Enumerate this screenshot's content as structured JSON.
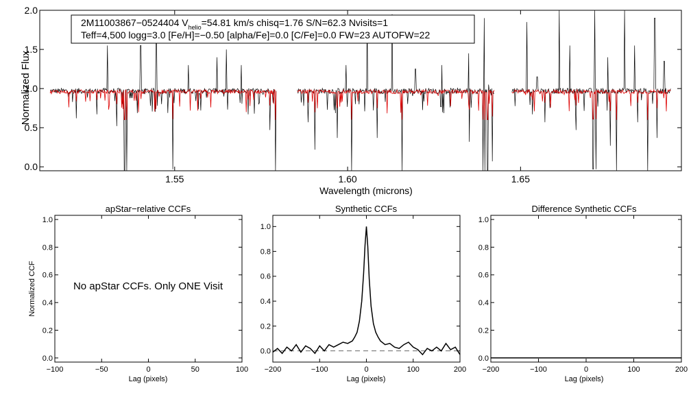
{
  "figure": {
    "title_line1": "2M11003867−0524404  V",
    "helio_subscript": "helio",
    "title_line1b": "=54.81 km/s  chisq=1.76  S/N=62.3  Nvisits=1",
    "title_line2": "Teff=4,500 logg=3.0 [Fe/H]=−0.50 [alpha/Fe]=0.0 [C/Fe]=0.0 FW=23 AUTOFW=22"
  },
  "chart_data": [
    {
      "type": "line",
      "name": "spectrum",
      "xlabel": "Wavelength (microns)",
      "ylabel": "Normalized Flux",
      "xlim": [
        1.511,
        1.6965
      ],
      "ylim": [
        -0.05,
        2.0
      ],
      "xticks": [
        1.55,
        1.6,
        1.65
      ],
      "xtick_labels": [
        "1.55",
        "1.60",
        "1.65"
      ],
      "yticks": [
        0.0,
        0.5,
        1.0,
        1.5,
        2.0
      ],
      "ytick_labels": [
        "0.0",
        "0.5",
        "1.0",
        "1.5",
        "2.0"
      ],
      "segments": [
        [
          1.514,
          1.5795
        ],
        [
          1.5855,
          1.6425
        ],
        [
          1.6475,
          1.6935
        ]
      ],
      "series": [
        {
          "name": "observed",
          "color": "#000000",
          "continuum": 0.97
        },
        {
          "name": "synthetic",
          "color": "#dd0000",
          "continuum": 0.96
        }
      ],
      "absorption_lines": [
        [
          1.5216,
          0.35
        ],
        [
          1.5275,
          0.3
        ],
        [
          1.5332,
          0.45
        ],
        [
          1.5355,
          1.02
        ],
        [
          1.5362,
          1.03
        ],
        [
          1.5494,
          1.0
        ],
        [
          1.5575,
          0.25
        ],
        [
          1.5712,
          0.3
        ],
        [
          1.5775,
          0.5
        ],
        [
          1.5792,
          1.03
        ],
        [
          1.5885,
          0.4
        ],
        [
          1.5905,
          0.75
        ],
        [
          1.597,
          0.6
        ],
        [
          1.6012,
          1.02
        ],
        [
          1.6085,
          0.6
        ],
        [
          1.6158,
          1.02
        ],
        [
          1.6352,
          0.65
        ],
        [
          1.6391,
          1.02
        ],
        [
          1.6397,
          1.03
        ],
        [
          1.6405,
          1.02
        ],
        [
          1.6418,
          0.9
        ],
        [
          1.6535,
          0.3
        ],
        [
          1.657,
          0.4
        ],
        [
          1.666,
          0.5
        ],
        [
          1.671,
          1.0
        ],
        [
          1.6718,
          1.0
        ],
        [
          1.676,
          0.7
        ],
        [
          1.6778,
          1.03
        ],
        [
          1.6838,
          0.4
        ],
        [
          1.6868,
          1.03
        ],
        [
          1.6895,
          0.6
        ]
      ],
      "emission_spikes": [
        [
          1.5305,
          1.55
        ],
        [
          1.5402,
          1.55
        ],
        [
          1.5447,
          1.65
        ],
        [
          1.554,
          1.3
        ],
        [
          1.5622,
          1.4
        ],
        [
          1.565,
          1.5
        ],
        [
          1.5692,
          1.3
        ],
        [
          1.5995,
          1.3
        ],
        [
          1.6056,
          1.9
        ],
        [
          1.6128,
          1.95
        ],
        [
          1.6196,
          1.25
        ],
        [
          1.6272,
          1.3
        ],
        [
          1.635,
          1.45
        ],
        [
          1.6395,
          1.9
        ],
        [
          1.6408,
          1.05
        ],
        [
          1.6435,
          1.2
        ],
        [
          1.6518,
          1.85
        ],
        [
          1.6548,
          1.15
        ],
        [
          1.6612,
          2.0
        ],
        [
          1.6642,
          1.55
        ],
        [
          1.6715,
          2.0
        ],
        [
          1.6752,
          1.4
        ],
        [
          1.6801,
          2.0
        ],
        [
          1.683,
          1.55
        ],
        [
          1.6888,
          1.9
        ],
        [
          1.6915,
          1.35
        ]
      ]
    },
    {
      "type": "line",
      "name": "apstar-ccf",
      "title": "apStar−relative CCFs",
      "xlabel": "Lag (pixels)",
      "ylabel": "Normalized CCF",
      "xlim": [
        -100,
        100
      ],
      "ylim": [
        -0.03,
        1.03
      ],
      "xticks": [
        -100,
        -50,
        0,
        50,
        100
      ],
      "xtick_labels": [
        "−100",
        "−50",
        "0",
        "50",
        "100"
      ],
      "yticks": [
        0.0,
        0.2,
        0.4,
        0.6,
        0.8,
        1.0
      ],
      "ytick_labels": [
        "0.0",
        "0.2",
        "0.4",
        "0.6",
        "0.8",
        "1.0"
      ],
      "annotation": "No apStar CCFs.  Only ONE Visit",
      "series": []
    },
    {
      "type": "line",
      "name": "synthetic-ccf",
      "title": "Synthetic CCFs",
      "xlabel": "Lag (pixels)",
      "xlim": [
        -200,
        200
      ],
      "ylim": [
        -0.09,
        1.09
      ],
      "xticks": [
        -200,
        -100,
        0,
        100,
        200
      ],
      "xtick_labels": [
        "−200",
        "−100",
        "0",
        "100",
        "200"
      ],
      "yticks": [
        0.0,
        0.2,
        0.4,
        0.6,
        0.8,
        1.0
      ],
      "ytick_labels": [
        "0.0",
        "0.2",
        "0.4",
        "0.6",
        "0.8",
        "1.0"
      ],
      "baseline": 0.0,
      "series": [
        {
          "name": "ccf",
          "color": "#000000",
          "x": [
            -200,
            -190,
            -180,
            -170,
            -160,
            -150,
            -140,
            -130,
            -120,
            -110,
            -100,
            -90,
            -80,
            -70,
            -60,
            -50,
            -40,
            -30,
            -25,
            -20,
            -15,
            -10,
            -6,
            -3,
            0,
            3,
            6,
            10,
            15,
            20,
            25,
            30,
            40,
            50,
            60,
            70,
            80,
            90,
            100,
            110,
            120,
            130,
            140,
            150,
            160,
            170,
            180,
            190,
            200
          ],
          "values": [
            -0.01,
            0.02,
            -0.02,
            0.03,
            0.0,
            0.05,
            -0.01,
            0.04,
            0.02,
            -0.02,
            0.04,
            0.0,
            0.05,
            0.03,
            0.05,
            0.07,
            0.06,
            0.08,
            0.11,
            0.15,
            0.24,
            0.4,
            0.62,
            0.85,
            1.0,
            0.84,
            0.58,
            0.36,
            0.22,
            0.15,
            0.11,
            0.08,
            0.05,
            0.06,
            0.03,
            0.02,
            0.05,
            0.07,
            0.03,
            0.01,
            -0.03,
            0.02,
            0.0,
            0.03,
            0.0,
            0.06,
            0.01,
            0.03,
            -0.03
          ]
        }
      ]
    },
    {
      "type": "line",
      "name": "difference-ccf",
      "title": "Difference Synthetic CCFs",
      "xlabel": "Lag (pixels)",
      "xlim": [
        -200,
        200
      ],
      "ylim": [
        -0.03,
        1.03
      ],
      "xticks": [
        -200,
        -100,
        0,
        100,
        200
      ],
      "xtick_labels": [
        "−200",
        "−100",
        "0",
        "100",
        "200"
      ],
      "yticks": [
        0.0,
        0.2,
        0.4,
        0.6,
        0.8,
        1.0
      ],
      "ytick_labels": [
        "0.0",
        "0.2",
        "0.4",
        "0.6",
        "0.8",
        "1.0"
      ],
      "series": [
        {
          "name": "difference",
          "color": "#000000",
          "x": [
            -200,
            200
          ],
          "values": [
            0.0,
            0.0
          ]
        }
      ]
    }
  ]
}
